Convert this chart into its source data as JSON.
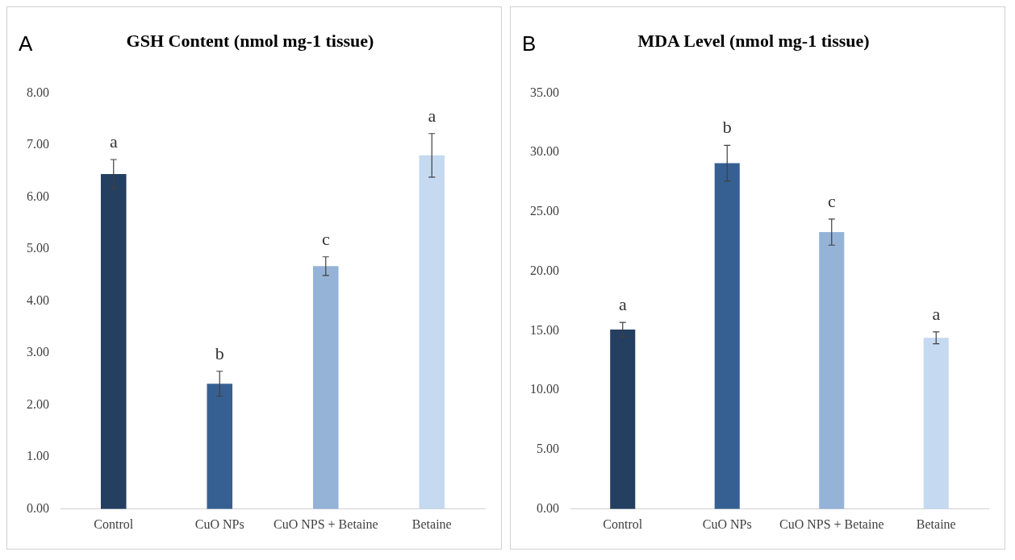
{
  "chart_data": [
    {
      "type": "bar",
      "title": "GSH Content (nmol mg-1 tissue)",
      "categories": [
        "Control",
        "CuO NPs",
        "CuO NPS + Betaine",
        "Betaine"
      ],
      "values": [
        6.44,
        2.41,
        4.67,
        6.8
      ],
      "errors": [
        0.28,
        0.24,
        0.18,
        0.42
      ],
      "colors": [
        "#243f60",
        "#376092",
        "#95b3d7",
        "#c5d9f1"
      ],
      "ylim": [
        0,
        8
      ],
      "yticks": [
        {
          "value": 0,
          "label": "0.00"
        },
        {
          "value": 1,
          "label": "1.00"
        },
        {
          "value": 2,
          "label": "2.00"
        },
        {
          "value": 3,
          "label": "3.00"
        },
        {
          "value": 4,
          "label": "4.00"
        },
        {
          "value": 5,
          "label": "5.00"
        },
        {
          "value": 6,
          "label": "6.00"
        },
        {
          "value": 7,
          "label": "7.00"
        },
        {
          "value": 8,
          "label": "8.00"
        }
      ],
      "grid": false,
      "legend": false,
      "annotations": [
        "A",
        {
          "text": "a",
          "x": "Control",
          "y": 6.72
        },
        {
          "text": "b",
          "x": "CuO NPs",
          "y": 2.65
        },
        {
          "text": "c",
          "x": "CuO NPS + Betaine",
          "y": 4.85
        },
        {
          "text": "a",
          "x": "Betaine",
          "y": 7.22
        }
      ]
    },
    {
      "type": "bar",
      "title": "MDA Level (nmol mg-1 tissue)",
      "categories": [
        "Control",
        "CuO NPs",
        "CuO NPS + Betaine",
        "Betaine"
      ],
      "values": [
        15.1,
        29.1,
        23.3,
        14.4
      ],
      "errors": [
        0.6,
        1.5,
        1.1,
        0.5
      ],
      "colors": [
        "#243f60",
        "#376092",
        "#95b3d7",
        "#c5d9f1"
      ],
      "ylim": [
        0,
        35
      ],
      "yticks": [
        {
          "value": 0,
          "label": "0.00"
        },
        {
          "value": 5,
          "label": "5.00"
        },
        {
          "value": 10,
          "label": "10.00"
        },
        {
          "value": 15,
          "label": "15.00"
        },
        {
          "value": 20,
          "label": "20.00"
        },
        {
          "value": 25,
          "label": "25.00"
        },
        {
          "value": 30,
          "label": "30.00"
        },
        {
          "value": 35,
          "label": "35.00"
        }
      ],
      "grid": false,
      "legend": false,
      "annotations": [
        "B",
        {
          "text": "a",
          "x": "Control",
          "y": 15.7
        },
        {
          "text": "b",
          "x": "CuO NPs",
          "y": 30.6
        },
        {
          "text": "c",
          "x": "CuO NPS + Betaine",
          "y": 24.4
        },
        {
          "text": "a",
          "x": "Betaine",
          "y": 14.9
        }
      ]
    }
  ]
}
